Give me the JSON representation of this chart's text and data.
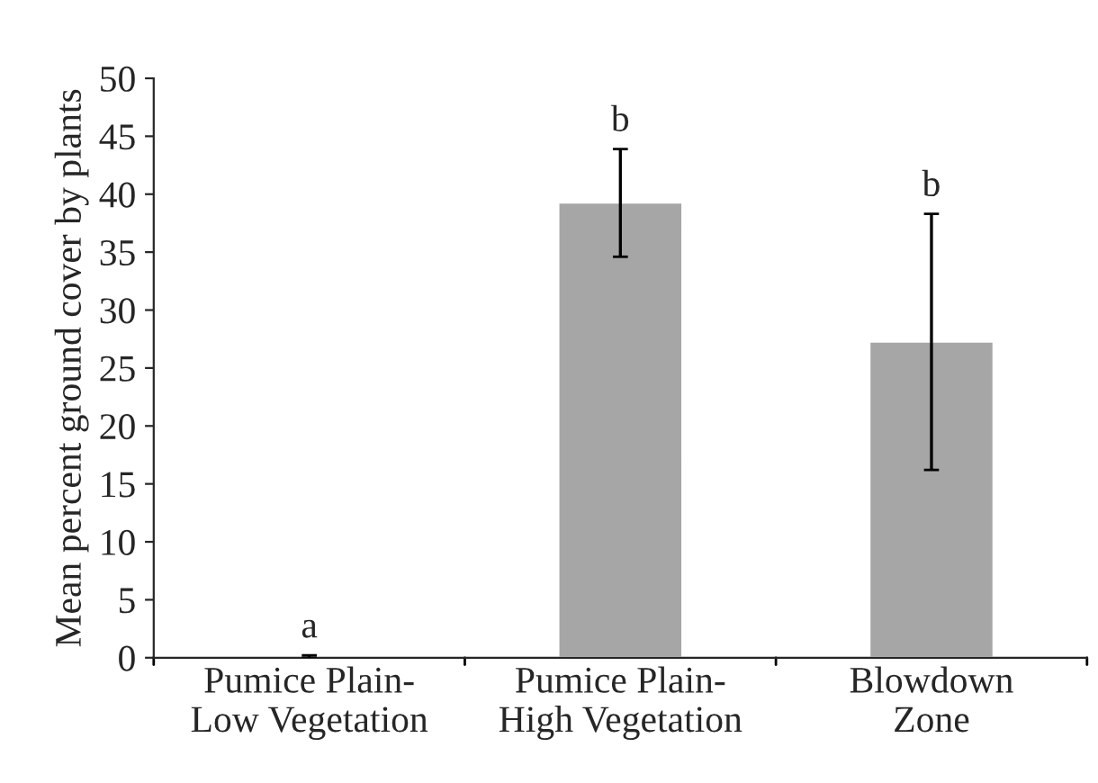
{
  "chart_data": {
    "type": "bar",
    "ylabel": "Mean percent ground cover by plants",
    "categories": [
      "Pumice Plain-\nLow Vegetation",
      "Pumice Plain-\nHigh Vegetation",
      "Blowdown\nZone"
    ],
    "values": [
      0.1,
      39.3,
      27.3
    ],
    "errors": [
      0.1,
      [
        34.6,
        43.9
      ],
      [
        16.2,
        38.3
      ]
    ],
    "color": "#a6a6a6",
    "ylim": [
      0,
      50
    ],
    "yticks": [
      0,
      5,
      10,
      15,
      20,
      25,
      30,
      35,
      40,
      45,
      50
    ],
    "grid": false,
    "annotations": [
      {
        "text": "a",
        "x": "Pumice Plain-\nLow Vegetation",
        "y": 0.2
      },
      {
        "text": "b",
        "x": "Pumice Plain-\nHigh Vegetation",
        "y": 43.9
      },
      {
        "text": "b",
        "x": "Blowdown\nZone",
        "y": 38.3
      }
    ]
  }
}
